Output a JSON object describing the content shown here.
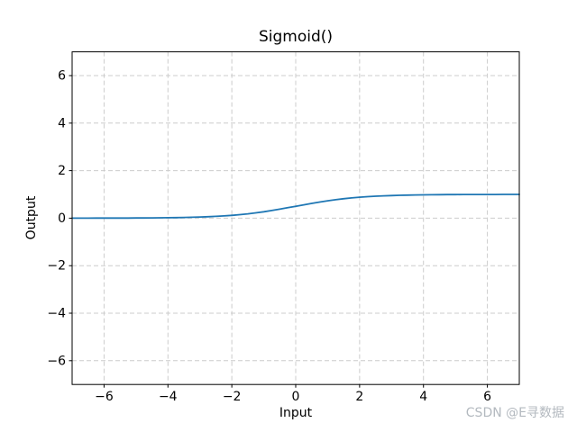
{
  "watermark": {
    "text": "CSDN @E寻数据",
    "color": "#b3b9bf"
  },
  "chart_data": {
    "type": "line",
    "title": "Sigmoid()",
    "xlabel": "Input",
    "ylabel": "Output",
    "xlim": [
      -7,
      7
    ],
    "ylim": [
      -7,
      7
    ],
    "xticks": [
      -6,
      -4,
      -2,
      0,
      2,
      4,
      6
    ],
    "yticks": [
      -6,
      -4,
      -2,
      0,
      2,
      4,
      6
    ],
    "grid": true,
    "grid_style": "dashed",
    "grid_color": "#cccccc",
    "spine_color": "#000000",
    "legend_position": "none",
    "series": [
      {
        "name": "sigmoid",
        "color": "#1f77b4",
        "x": [
          -7,
          -6.75,
          -6.5,
          -6.25,
          -6,
          -5.75,
          -5.5,
          -5.25,
          -5,
          -4.75,
          -4.5,
          -4.25,
          -4,
          -3.75,
          -3.5,
          -3.25,
          -3,
          -2.75,
          -2.5,
          -2.25,
          -2,
          -1.75,
          -1.5,
          -1.25,
          -1,
          -0.75,
          -0.5,
          -0.25,
          0,
          0.25,
          0.5,
          0.75,
          1,
          1.25,
          1.5,
          1.75,
          2,
          2.25,
          2.5,
          2.75,
          3,
          3.25,
          3.5,
          3.75,
          4,
          4.25,
          4.5,
          4.75,
          5,
          5.25,
          5.5,
          5.75,
          6,
          6.25,
          6.5,
          6.75,
          7
        ],
        "y": [
          0.0009,
          0.0012,
          0.0015,
          0.0019,
          0.0025,
          0.0032,
          0.0041,
          0.0052,
          0.0067,
          0.0086,
          0.011,
          0.0141,
          0.018,
          0.023,
          0.0293,
          0.0374,
          0.0474,
          0.0601,
          0.0759,
          0.0953,
          0.1192,
          0.148,
          0.1824,
          0.2227,
          0.2689,
          0.3208,
          0.3775,
          0.4378,
          0.5,
          0.5622,
          0.6225,
          0.6792,
          0.7311,
          0.7773,
          0.8176,
          0.852,
          0.8808,
          0.9047,
          0.9241,
          0.9399,
          0.9526,
          0.9626,
          0.9707,
          0.977,
          0.982,
          0.9859,
          0.989,
          0.9914,
          0.9933,
          0.9948,
          0.9959,
          0.9968,
          0.9975,
          0.9981,
          0.9985,
          0.9988,
          0.9991
        ]
      }
    ]
  }
}
